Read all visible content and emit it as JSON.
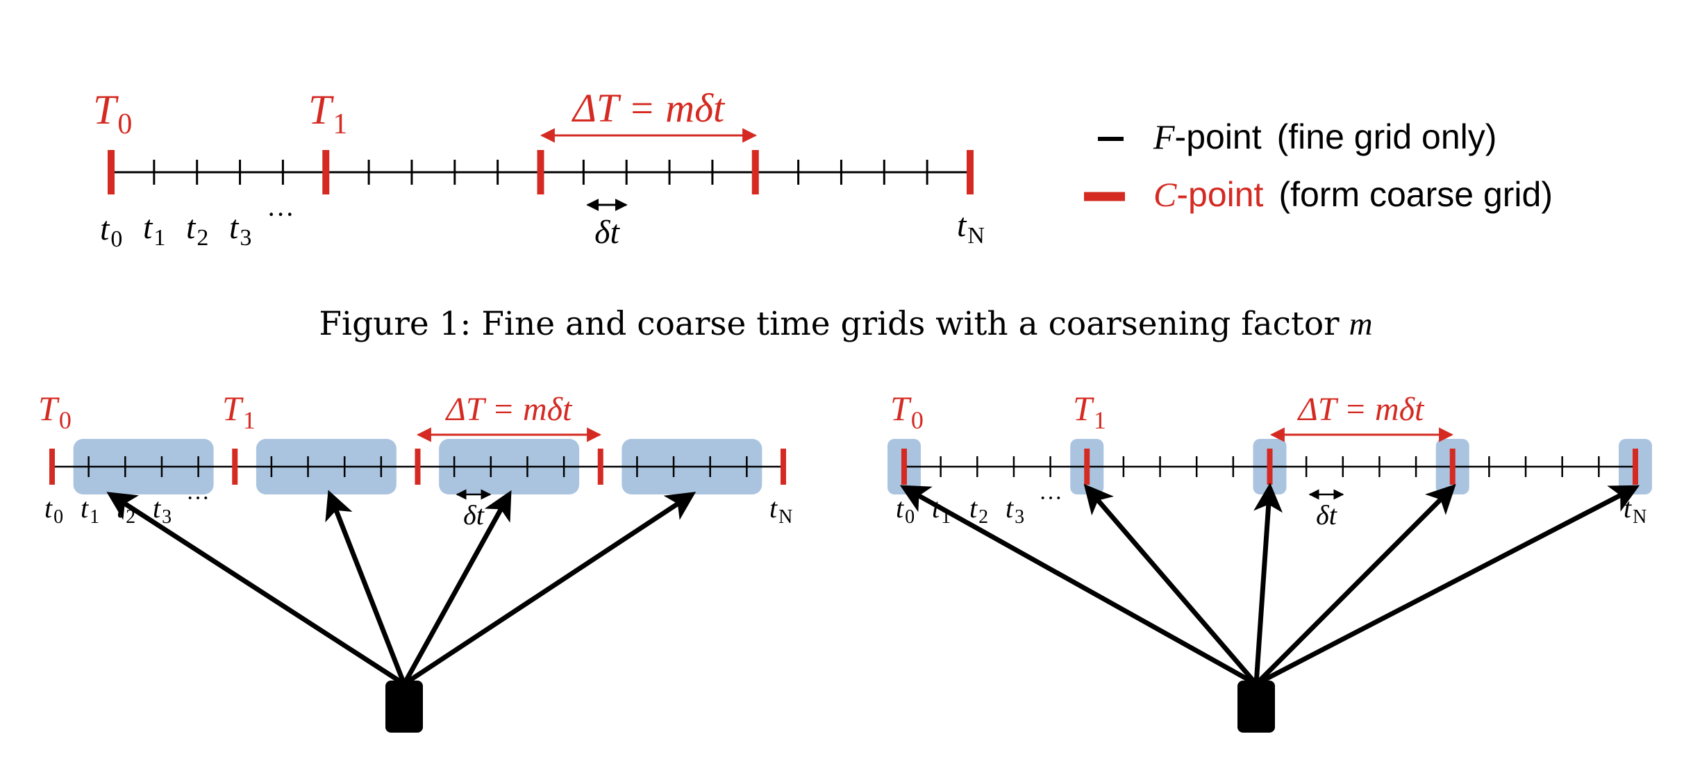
{
  "colors": {
    "red": "#d42a22",
    "black": "#000000",
    "blue": "#aac4e0"
  },
  "top_diagram": {
    "coarse_labels": [
      {
        "base": "T",
        "sub": "0"
      },
      {
        "base": "T",
        "sub": "1"
      }
    ],
    "fine_labels": [
      {
        "base": "t",
        "sub": "0"
      },
      {
        "base": "t",
        "sub": "1"
      },
      {
        "base": "t",
        "sub": "2"
      },
      {
        "base": "t",
        "sub": "3"
      },
      {
        "base": "t",
        "sub": "N"
      }
    ],
    "ellipsis": "···",
    "delta_T_label": "ΔT = mδt",
    "delta_t_label": "δt",
    "coarsening_factor": 5,
    "coarse_intervals": 4
  },
  "legend": {
    "f_point": {
      "symbol": "F",
      "suffix": "-point",
      "desc": "(fine grid only)"
    },
    "c_point": {
      "symbol": "C",
      "suffix": "-point",
      "desc": "(form coarse grid)"
    }
  },
  "caption": {
    "prefix": "Figure 1: Fine and coarse time grids with a coarsening factor",
    "var": "m"
  },
  "bottom_left": {
    "coarse_labels": [
      {
        "base": "T",
        "sub": "0"
      },
      {
        "base": "T",
        "sub": "1"
      }
    ],
    "fine_labels": [
      {
        "base": "t",
        "sub": "0"
      },
      {
        "base": "t",
        "sub": "1"
      },
      {
        "base": "t",
        "sub": "2"
      },
      {
        "base": "t",
        "sub": "3"
      },
      {
        "base": "t",
        "sub": "N"
      }
    ],
    "ellipsis": "···",
    "delta_T_label": "ΔT = mδt",
    "delta_t_label": "δt",
    "highlight": "f-intervals",
    "arrow_count": 4
  },
  "bottom_right": {
    "coarse_labels": [
      {
        "base": "T",
        "sub": "0"
      },
      {
        "base": "T",
        "sub": "1"
      }
    ],
    "fine_labels": [
      {
        "base": "t",
        "sub": "0"
      },
      {
        "base": "t",
        "sub": "1"
      },
      {
        "base": "t",
        "sub": "2"
      },
      {
        "base": "t",
        "sub": "3"
      },
      {
        "base": "t",
        "sub": "N"
      }
    ],
    "ellipsis": "···",
    "delta_T_label": "ΔT = mδt",
    "delta_t_label": "δt",
    "highlight": "c-points",
    "arrow_count": 5
  }
}
